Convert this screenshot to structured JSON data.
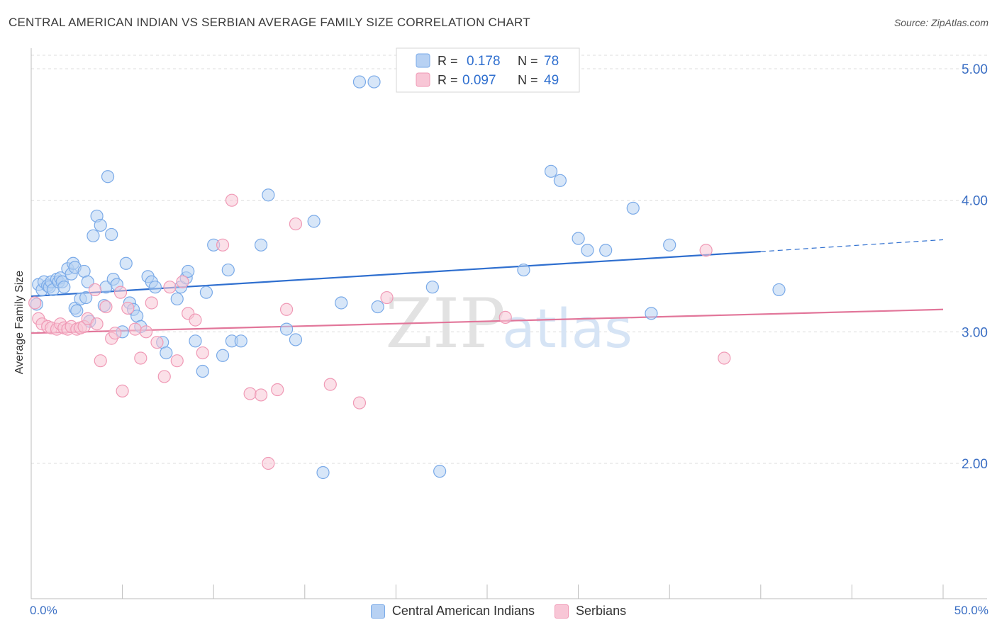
{
  "title": "CENTRAL AMERICAN INDIAN VS SERBIAN AVERAGE FAMILY SIZE CORRELATION CHART",
  "source": "Source: ZipAtlas.com",
  "watermark": {
    "zip": "ZIP",
    "atlas": "atlas"
  },
  "legend": {
    "r_label": "R =",
    "n_label": "N =",
    "items": [
      {
        "r": "0.178",
        "n": "78"
      },
      {
        "r": "0.097",
        "n": "49"
      }
    ]
  },
  "chart_data": {
    "type": "scatter",
    "title": "CENTRAL AMERICAN INDIAN VS SERBIAN AVERAGE FAMILY SIZE CORRELATION CHART",
    "xlabel": "",
    "ylabel": "Average Family Size",
    "xlim": [
      0,
      50
    ],
    "ylim": [
      1.0,
      5.1
    ],
    "x_tick_labels": [
      "0.0%",
      "50.0%"
    ],
    "y_ticks": [
      2.0,
      3.0,
      4.0,
      5.0
    ],
    "y_tick_labels": [
      "2.00",
      "3.00",
      "4.00",
      "5.00"
    ],
    "grid": true,
    "legend_position": "top-center",
    "series": [
      {
        "name": "Central American Indians",
        "color": "#7aaae8",
        "fill": "#b7d1f3",
        "line_color": "#2f6fcf",
        "trend": {
          "x0": 0,
          "y0": 3.27,
          "x1": 40,
          "y1": 3.61,
          "dash_to": 50,
          "dash_y": 3.7
        },
        "points": [
          [
            0.3,
            3.21
          ],
          [
            0.4,
            3.36
          ],
          [
            0.6,
            3.32
          ],
          [
            0.7,
            3.38
          ],
          [
            0.9,
            3.35
          ],
          [
            1.0,
            3.34
          ],
          [
            1.1,
            3.38
          ],
          [
            1.2,
            3.32
          ],
          [
            1.4,
            3.4
          ],
          [
            1.5,
            3.38
          ],
          [
            1.6,
            3.41
          ],
          [
            1.7,
            3.38
          ],
          [
            1.8,
            3.34
          ],
          [
            2.0,
            3.48
          ],
          [
            2.2,
            3.44
          ],
          [
            2.3,
            3.52
          ],
          [
            2.4,
            3.49
          ],
          [
            2.4,
            3.18
          ],
          [
            2.5,
            3.16
          ],
          [
            2.7,
            3.25
          ],
          [
            2.9,
            3.46
          ],
          [
            3.0,
            3.26
          ],
          [
            3.1,
            3.38
          ],
          [
            3.2,
            3.08
          ],
          [
            3.4,
            3.73
          ],
          [
            3.6,
            3.88
          ],
          [
            3.8,
            3.81
          ],
          [
            4.0,
            3.2
          ],
          [
            4.1,
            3.34
          ],
          [
            4.2,
            4.18
          ],
          [
            4.4,
            3.74
          ],
          [
            4.5,
            3.4
          ],
          [
            4.7,
            3.36
          ],
          [
            5.0,
            3.0
          ],
          [
            5.2,
            3.52
          ],
          [
            5.4,
            3.22
          ],
          [
            5.6,
            3.17
          ],
          [
            5.8,
            3.12
          ],
          [
            6.0,
            3.04
          ],
          [
            6.4,
            3.42
          ],
          [
            6.6,
            3.38
          ],
          [
            6.8,
            3.34
          ],
          [
            7.2,
            2.92
          ],
          [
            7.4,
            2.84
          ],
          [
            8.0,
            3.25
          ],
          [
            8.2,
            3.34
          ],
          [
            8.5,
            3.41
          ],
          [
            8.6,
            3.46
          ],
          [
            9.0,
            2.93
          ],
          [
            9.4,
            2.7
          ],
          [
            9.6,
            3.3
          ],
          [
            10.0,
            3.66
          ],
          [
            10.5,
            2.82
          ],
          [
            10.8,
            3.47
          ],
          [
            11.0,
            2.93
          ],
          [
            11.5,
            2.93
          ],
          [
            12.6,
            3.66
          ],
          [
            13.0,
            4.04
          ],
          [
            14.0,
            3.02
          ],
          [
            14.5,
            2.94
          ],
          [
            15.5,
            3.84
          ],
          [
            17.0,
            3.22
          ],
          [
            18.0,
            4.9
          ],
          [
            18.8,
            4.9
          ],
          [
            19.0,
            3.19
          ],
          [
            22.0,
            3.34
          ],
          [
            22.4,
            1.94
          ],
          [
            27.0,
            3.47
          ],
          [
            28.5,
            4.22
          ],
          [
            29.0,
            4.15
          ],
          [
            30.0,
            3.71
          ],
          [
            30.5,
            3.62
          ],
          [
            31.5,
            3.62
          ],
          [
            33.0,
            3.94
          ],
          [
            34.0,
            3.14
          ],
          [
            35.0,
            3.66
          ],
          [
            41.0,
            3.32
          ],
          [
            16.0,
            1.93
          ]
        ]
      },
      {
        "name": "Serbians",
        "color": "#f09ab6",
        "fill": "#f8c6d6",
        "line_color": "#e2769a",
        "trend": {
          "x0": 0,
          "y0": 2.99,
          "x1": 50,
          "y1": 3.17
        },
        "points": [
          [
            0.2,
            3.22
          ],
          [
            0.4,
            3.1
          ],
          [
            0.6,
            3.06
          ],
          [
            0.9,
            3.04
          ],
          [
            1.1,
            3.03
          ],
          [
            1.4,
            3.02
          ],
          [
            1.6,
            3.06
          ],
          [
            1.8,
            3.03
          ],
          [
            2.0,
            3.02
          ],
          [
            2.2,
            3.04
          ],
          [
            2.5,
            3.02
          ],
          [
            2.7,
            3.03
          ],
          [
            2.9,
            3.04
          ],
          [
            3.1,
            3.1
          ],
          [
            3.5,
            3.32
          ],
          [
            3.6,
            3.06
          ],
          [
            3.8,
            2.78
          ],
          [
            4.1,
            3.19
          ],
          [
            4.4,
            2.95
          ],
          [
            4.6,
            2.99
          ],
          [
            4.9,
            3.3
          ],
          [
            5.0,
            2.55
          ],
          [
            5.3,
            3.18
          ],
          [
            5.7,
            3.02
          ],
          [
            6.0,
            2.8
          ],
          [
            6.3,
            3.0
          ],
          [
            6.6,
            3.22
          ],
          [
            6.9,
            2.92
          ],
          [
            7.3,
            2.66
          ],
          [
            7.6,
            3.34
          ],
          [
            8.0,
            2.78
          ],
          [
            8.3,
            3.38
          ],
          [
            8.6,
            3.14
          ],
          [
            9.0,
            3.09
          ],
          [
            9.4,
            2.84
          ],
          [
            10.5,
            3.66
          ],
          [
            11.0,
            4.0
          ],
          [
            12.0,
            2.53
          ],
          [
            12.6,
            2.52
          ],
          [
            13.0,
            2.0
          ],
          [
            13.5,
            2.56
          ],
          [
            14.0,
            3.17
          ],
          [
            14.5,
            3.82
          ],
          [
            16.4,
            2.6
          ],
          [
            18.0,
            2.46
          ],
          [
            19.5,
            3.26
          ],
          [
            26.0,
            3.11
          ],
          [
            37.0,
            3.62
          ],
          [
            38.0,
            2.8
          ]
        ]
      }
    ]
  }
}
